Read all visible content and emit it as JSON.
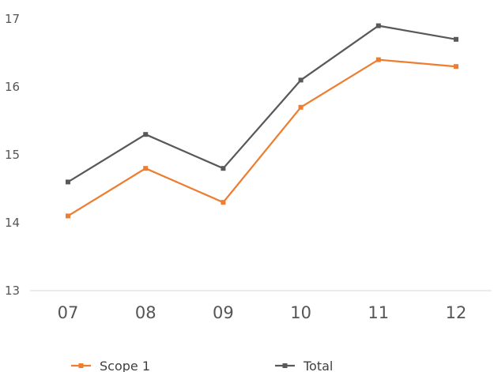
{
  "chart_data": {
    "type": "line",
    "categories": [
      "07",
      "08",
      "09",
      "10",
      "11",
      "12"
    ],
    "series": [
      {
        "name": "Scope 1",
        "values": [
          14.1,
          14.8,
          14.3,
          15.7,
          16.4,
          16.3
        ],
        "color": "#ed7d31",
        "marker": "square"
      },
      {
        "name": "Total",
        "values": [
          14.6,
          15.3,
          14.8,
          16.1,
          16.9,
          16.7
        ],
        "color": "#595959",
        "marker": "square"
      }
    ],
    "y_ticks": [
      "13",
      "14",
      "15",
      "16",
      "17"
    ],
    "ylim": [
      13,
      17
    ],
    "grid": false,
    "legend_position": "bottom"
  }
}
